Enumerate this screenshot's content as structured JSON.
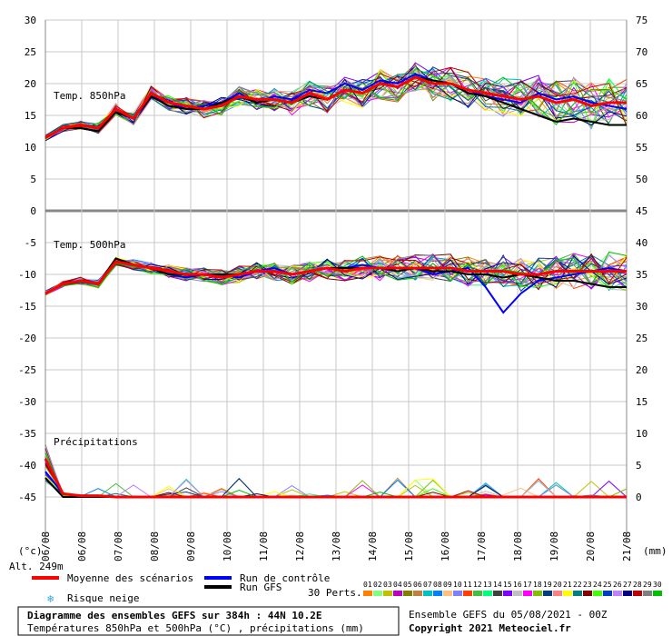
{
  "chart_data": {
    "type": "line",
    "x_labels": [
      "06/08",
      "06/08",
      "07/08",
      "08/08",
      "09/08",
      "10/08",
      "11/08",
      "12/08",
      "13/08",
      "14/08",
      "15/08",
      "16/08",
      "17/08",
      "18/08",
      "19/08",
      "20/08",
      "21/08"
    ],
    "left_ticks": [
      "30",
      "25",
      "20",
      "15",
      "10",
      "5",
      "0",
      "-5",
      "-10",
      "-15",
      "-20",
      "-25",
      "-30",
      "-35",
      "-40",
      "-45"
    ],
    "right_ticks_temp": [
      "75",
      "70",
      "65",
      "60",
      "55",
      "50",
      "45",
      "40",
      "35",
      "30",
      "25",
      "20",
      "15",
      "10",
      "5",
      "0"
    ],
    "left_unit": "(°c)",
    "right_unit": "(mm)",
    "altitude": "Alt. 249m",
    "panels": {
      "t850": "Temp. 850hPa",
      "t500": "Temp. 500hPa",
      "precip": "Précipitations"
    },
    "series": [
      {
        "name": "Moyenne des scénarios",
        "color": "#ff0000",
        "t850": [
          11.5,
          13,
          13.5,
          13,
          16,
          14.5,
          18.5,
          17,
          16.5,
          16,
          16.5,
          18,
          17.5,
          17.5,
          17,
          18.5,
          17.5,
          19,
          18.5,
          20,
          19.5,
          21,
          20,
          20,
          19,
          18.5,
          18,
          17.5,
          18,
          17,
          17.5,
          16.5,
          17,
          17
        ],
        "t500": [
          -13,
          -11.5,
          -11,
          -11.5,
          -8,
          -8.5,
          -9,
          -9.5,
          -10,
          -10,
          -10.5,
          -10,
          -9.5,
          -9.5,
          -10,
          -9.5,
          -9,
          -9.5,
          -9,
          -9,
          -9,
          -9,
          -9,
          -9,
          -9.5,
          -9.5,
          -9.5,
          -10,
          -10,
          -9.5,
          -9.5,
          -9.5,
          -9.5,
          -9.5
        ],
        "precip": [
          6,
          0.5,
          0.2,
          0.2,
          0,
          0,
          0,
          0,
          0,
          0,
          0,
          0,
          0,
          0,
          0,
          0,
          0,
          0,
          0,
          0,
          0,
          0,
          0,
          0,
          0,
          0,
          0,
          0,
          0,
          0,
          0,
          0,
          0,
          0
        ]
      },
      {
        "name": "Run de contrôle",
        "color": "#0000ff",
        "t850": [
          11.5,
          13,
          13,
          12.5,
          15.5,
          14.5,
          18,
          17,
          16,
          16.5,
          17,
          18.5,
          17,
          18,
          17.5,
          19,
          18.5,
          20,
          19,
          20.5,
          20,
          21.5,
          20.5,
          20,
          19,
          18,
          17.5,
          17,
          18.5,
          17.5,
          18,
          17,
          16.5,
          16
        ],
        "t500": [
          -13,
          -11.5,
          -11,
          -11.5,
          -7.5,
          -8.5,
          -9,
          -10,
          -10.5,
          -10,
          -10,
          -10.5,
          -9.5,
          -9,
          -10,
          -9.5,
          -9,
          -9,
          -8.5,
          -9,
          -9,
          -9,
          -10,
          -9.5,
          -9,
          -12,
          -16,
          -13,
          -11,
          -10.5,
          -10,
          -9.5,
          -9,
          -9.5
        ],
        "precip": [
          4,
          0.5,
          0,
          0,
          0,
          0,
          0,
          0,
          0,
          0,
          0,
          0,
          0,
          0,
          0,
          0,
          0,
          0,
          0,
          0,
          0,
          0,
          0,
          0,
          0,
          0,
          0,
          0,
          0,
          0,
          0,
          0,
          0,
          0
        ]
      },
      {
        "name": "Run GFS",
        "color": "#000000",
        "t850": [
          11.5,
          13,
          13,
          12.5,
          15.5,
          14.5,
          18,
          16.5,
          16,
          16,
          17,
          18,
          17,
          17.5,
          17,
          18,
          17.5,
          19,
          18.5,
          20,
          19.5,
          21,
          20.5,
          20,
          18.5,
          18,
          17,
          16,
          15,
          14,
          14.5,
          14,
          13.5,
          13.5
        ],
        "t500": [
          -13,
          -11.5,
          -11,
          -11.5,
          -7.5,
          -8.5,
          -9,
          -10,
          -10,
          -10,
          -10,
          -10,
          -9.5,
          -9.5,
          -10,
          -9.5,
          -9,
          -9,
          -9,
          -9,
          -9.5,
          -9,
          -9.5,
          -9.5,
          -10,
          -10,
          -10.5,
          -10,
          -10.5,
          -11,
          -11,
          -11.5,
          -12,
          -12
        ],
        "precip": [
          3,
          0,
          0,
          0,
          0,
          0,
          0,
          0,
          0,
          0,
          0,
          0,
          0,
          0,
          0,
          0,
          0,
          0,
          0,
          0,
          0,
          0,
          0,
          0,
          0,
          0,
          0,
          0,
          0,
          0,
          0,
          0,
          0,
          0
        ]
      }
    ],
    "perturbation_colors": [
      "#ff8000",
      "#80ff80",
      "#c0c000",
      "#c000c0",
      "#808000",
      "#c08040",
      "#00c0c0",
      "#0080ff",
      "#ffc080",
      "#8080ff",
      "#ff4000",
      "#40c040",
      "#00ff80",
      "#404040",
      "#8000ff",
      "#c0c0c0",
      "#ff00ff",
      "#80c000",
      "#004080",
      "#ff8080",
      "#ffff00",
      "#008080",
      "#800000",
      "#40ff00",
      "#0040c0",
      "#c080ff",
      "#000080",
      "#c00000",
      "#808080",
      "#00c000"
    ],
    "perturbation_labels": [
      "01",
      "02",
      "03",
      "04",
      "05",
      "06",
      "07",
      "08",
      "09",
      "10",
      "11",
      "12",
      "13",
      "14",
      "15",
      "16",
      "17",
      "18",
      "19",
      "20",
      "21",
      "22",
      "23",
      "24",
      "25",
      "26",
      "27",
      "28",
      "29",
      "30"
    ]
  },
  "legend": {
    "mean_label": "Moyenne des scénarios",
    "control_label": "Run de contrôle",
    "gfs_label": "Run GFS",
    "snow_label": "Risque neige",
    "perts_label": "30 Perts."
  },
  "footer": {
    "title": "Diagramme des ensembles GEFS sur 384h : 44N 10.2E",
    "subtitle": "Températures 850hPa et 500hPa (°C) , précipitations (mm)",
    "ensemble": "Ensemble GEFS du 05/08/2021 - 00Z",
    "copyright": "Copyright 2021 Meteociel.fr"
  }
}
